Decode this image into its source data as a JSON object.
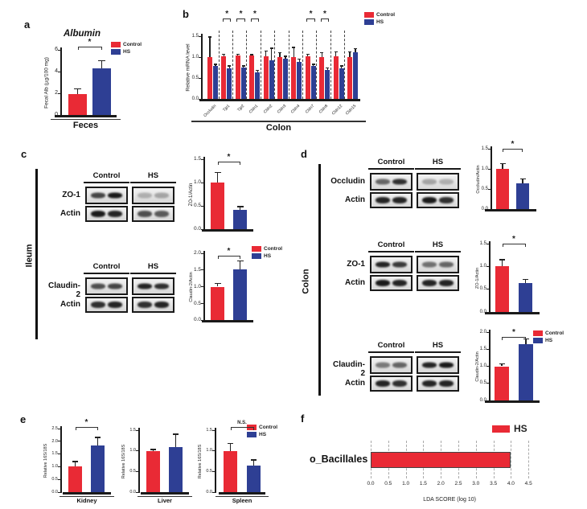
{
  "colors": {
    "control": "#e92a35",
    "hs": "#2e3f94",
    "axis": "#1a1a1a"
  },
  "legend": {
    "control": "Control",
    "hs": "HS"
  },
  "panels": {
    "a": {
      "letter": "a"
    },
    "b": {
      "letter": "b"
    },
    "c": {
      "letter": "c",
      "organ": "Ileum"
    },
    "d": {
      "letter": "d",
      "organ": "Colon"
    },
    "e": {
      "letter": "e"
    },
    "f": {
      "letter": "f"
    }
  },
  "blots": {
    "c_zo1": {
      "rows": [
        {
          "label": "ZO-1",
          "control": [
            0.75,
            0.95
          ],
          "hs": [
            0.25,
            0.3
          ]
        },
        {
          "label": "Actin",
          "control": [
            0.95,
            0.9
          ],
          "hs": [
            0.7,
            0.65
          ]
        }
      ]
    },
    "c_cldn2": {
      "rows": [
        {
          "label": "Claudin-2",
          "control": [
            0.7,
            0.75
          ],
          "hs": [
            0.9,
            0.85
          ]
        },
        {
          "label": "Actin",
          "control": [
            0.85,
            0.9
          ],
          "hs": [
            0.85,
            0.9
          ]
        }
      ]
    },
    "d_occludin": {
      "rows": [
        {
          "label": "Occludin",
          "control": [
            0.6,
            0.85
          ],
          "hs": [
            0.3,
            0.25
          ]
        },
        {
          "label": "Actin",
          "control": [
            0.9,
            0.9
          ],
          "hs": [
            0.95,
            0.85
          ]
        }
      ]
    },
    "d_zo1": {
      "rows": [
        {
          "label": "ZO-1",
          "control": [
            0.9,
            0.8
          ],
          "hs": [
            0.55,
            0.6
          ]
        },
        {
          "label": "Actin",
          "control": [
            0.95,
            0.9
          ],
          "hs": [
            0.9,
            0.9
          ]
        }
      ]
    },
    "d_cldn2": {
      "rows": [
        {
          "label": "Claudin-2",
          "control": [
            0.5,
            0.6
          ],
          "hs": [
            0.9,
            0.95
          ]
        },
        {
          "label": "Actin",
          "control": [
            0.9,
            0.85
          ],
          "hs": [
            0.9,
            0.9
          ]
        }
      ]
    }
  },
  "chart_data": [
    {
      "id": "a",
      "type": "bar",
      "title": "Albumin",
      "ylabel": "Fecal Alb (µg/100 mg)",
      "xlabel": "Feces",
      "ylim": [
        0,
        6
      ],
      "yticks": [
        0,
        2,
        4,
        6
      ],
      "ytick_labels": [
        "0",
        "2",
        "4",
        "6"
      ],
      "series": [
        {
          "name": "Control",
          "values": [
            1.9
          ],
          "errors": [
            0.5
          ]
        },
        {
          "name": "HS",
          "values": [
            4.3
          ],
          "errors": [
            0.7
          ]
        }
      ],
      "sig": "*"
    },
    {
      "id": "b",
      "type": "bar",
      "ylabel": "Relative mRNA level",
      "xlabel": "Colon",
      "ylim": [
        0,
        1.5
      ],
      "yticks": [
        0,
        0.5,
        1,
        1.5
      ],
      "ytick_labels": [
        "0.0",
        "0.5",
        "1.0",
        "1.5"
      ],
      "categories": [
        "Occludin",
        "Tjp1",
        "Tjp2",
        "Cldn1",
        "Cldn2",
        "Cldn3",
        "Cldn4",
        "Cldn7",
        "Cldn8",
        "Cldn12",
        "Cldn15"
      ],
      "series": [
        {
          "name": "Control",
          "values": [
            1.0,
            1.02,
            1.03,
            1.03,
            1.02,
            1.0,
            1.0,
            1.02,
            1.0,
            1.02,
            1.0
          ],
          "errors": [
            0.48,
            0.05,
            0.04,
            0.03,
            0.13,
            0.1,
            0.23,
            0.05,
            0.1,
            0.1,
            0.13
          ]
        },
        {
          "name": "HS",
          "values": [
            0.78,
            0.74,
            0.75,
            0.64,
            0.93,
            0.97,
            0.88,
            0.78,
            0.7,
            0.74,
            1.12
          ],
          "errors": [
            0.05,
            0.05,
            0.04,
            0.04,
            0.28,
            0.05,
            0.07,
            0.05,
            0.04,
            0.05,
            0.08
          ]
        }
      ],
      "sig": "*",
      "sig_categories": [
        "Tjp1",
        "Tjp2",
        "Cldn1",
        "Cldn7",
        "Cldn8"
      ]
    },
    {
      "id": "c_zo1",
      "type": "bar",
      "ylabel": "ZO-1/Actin",
      "ylim": [
        0,
        1.5
      ],
      "yticks": [
        0,
        0.5,
        1,
        1.5
      ],
      "ytick_labels": [
        "0.0",
        "0.5",
        "1.0",
        "1.5"
      ],
      "series": [
        {
          "name": "Control",
          "values": [
            1.0
          ],
          "errors": [
            0.22
          ]
        },
        {
          "name": "HS",
          "values": [
            0.42
          ],
          "errors": [
            0.06
          ]
        }
      ],
      "sig": "*"
    },
    {
      "id": "c_cldn2",
      "type": "bar",
      "ylabel": "Claudin-2/Actin",
      "ylim": [
        0,
        2
      ],
      "yticks": [
        0,
        0.5,
        1,
        1.5,
        2
      ],
      "ytick_labels": [
        "0.0",
        "0.5",
        "1.0",
        "1.5",
        "2.0"
      ],
      "series": [
        {
          "name": "Control",
          "values": [
            1.0
          ],
          "errors": [
            0.1
          ]
        },
        {
          "name": "HS",
          "values": [
            1.52
          ],
          "errors": [
            0.25
          ]
        }
      ],
      "sig": "*"
    },
    {
      "id": "d_occludin",
      "type": "bar",
      "ylabel": "Occludin/Actin",
      "ylim": [
        0,
        1.5
      ],
      "yticks": [
        0,
        0.5,
        1,
        1.5
      ],
      "ytick_labels": [
        "0.0",
        "0.5",
        "1.0",
        "1.5"
      ],
      "series": [
        {
          "name": "Control",
          "values": [
            1.0
          ],
          "errors": [
            0.13
          ]
        },
        {
          "name": "HS",
          "values": [
            0.65
          ],
          "errors": [
            0.1
          ]
        }
      ],
      "sig": "*"
    },
    {
      "id": "d_zo1",
      "type": "bar",
      "ylabel": "ZO-1/Actin",
      "ylim": [
        0,
        1.5
      ],
      "yticks": [
        0,
        0.5,
        1,
        1.5
      ],
      "ytick_labels": [
        "0.0",
        "0.5",
        "1.0",
        "1.5"
      ],
      "series": [
        {
          "name": "Control",
          "values": [
            1.0
          ],
          "errors": [
            0.15
          ]
        },
        {
          "name": "HS",
          "values": [
            0.63
          ],
          "errors": [
            0.08
          ]
        }
      ],
      "sig": "*"
    },
    {
      "id": "d_cldn2",
      "type": "bar",
      "ylabel": "Claudin-2/Actin",
      "ylim": [
        0,
        2
      ],
      "yticks": [
        0,
        0.5,
        1,
        1.5,
        2
      ],
      "ytick_labels": [
        "0.0",
        "0.5",
        "1.0",
        "1.5",
        "2.0"
      ],
      "series": [
        {
          "name": "Control",
          "values": [
            1.0
          ],
          "errors": [
            0.07
          ]
        },
        {
          "name": "HS",
          "values": [
            1.65
          ],
          "errors": [
            0.15
          ]
        }
      ],
      "sig": "*"
    },
    {
      "id": "e_kidney",
      "type": "bar",
      "ylabel": "Relative 16S/18S",
      "xlabel": "Kidney",
      "ylim": [
        0,
        2.5
      ],
      "yticks": [
        0,
        0.5,
        1,
        1.5,
        2,
        2.5
      ],
      "ytick_labels": [
        "0.0",
        "0.5",
        "1.0",
        "1.5",
        "2.0",
        "2.5"
      ],
      "series": [
        {
          "name": "Control",
          "values": [
            1.0
          ],
          "errors": [
            0.2
          ]
        },
        {
          "name": "HS",
          "values": [
            1.85
          ],
          "errors": [
            0.3
          ]
        }
      ],
      "sig": "*"
    },
    {
      "id": "e_liver",
      "type": "bar",
      "ylabel": "Relative 16S/18S",
      "xlabel": "Liver",
      "ylim": [
        0,
        1.5
      ],
      "yticks": [
        0,
        0.5,
        1,
        1.5
      ],
      "ytick_labels": [
        "0.0",
        "0.5",
        "1.0",
        "1.5"
      ],
      "series": [
        {
          "name": "Control",
          "values": [
            1.0
          ],
          "errors": [
            0.03
          ]
        },
        {
          "name": "HS",
          "values": [
            1.1
          ],
          "errors": [
            0.3
          ]
        }
      ],
      "sig": null
    },
    {
      "id": "e_spleen",
      "type": "bar",
      "ylabel": "Relative 16S/18S",
      "xlabel": "Spleen",
      "ylim": [
        0,
        1.5
      ],
      "yticks": [
        0,
        0.5,
        1,
        1.5
      ],
      "ytick_labels": [
        "0.0",
        "0.5",
        "1.0",
        "1.5"
      ],
      "series": [
        {
          "name": "Control",
          "values": [
            1.0
          ],
          "errors": [
            0.18
          ]
        },
        {
          "name": "HS",
          "values": [
            0.65
          ],
          "errors": [
            0.13
          ]
        }
      ],
      "sig": "N.S."
    },
    {
      "id": "f",
      "type": "bar_h",
      "series_name": "HS",
      "categories": [
        "o_Bacillales"
      ],
      "values": [
        4.0
      ],
      "xlim": [
        0,
        4.5
      ],
      "xticks": [
        0,
        0.5,
        1,
        1.5,
        2,
        2.5,
        3,
        3.5,
        4,
        4.5
      ],
      "xtick_labels": [
        "0.0",
        "0.5",
        "1.0",
        "1.5",
        "2.0",
        "2.5",
        "3.0",
        "3.5",
        "4.0",
        "4.5"
      ],
      "xlabel": "LDA SCORE (log 10)",
      "grid": "dashed"
    }
  ]
}
